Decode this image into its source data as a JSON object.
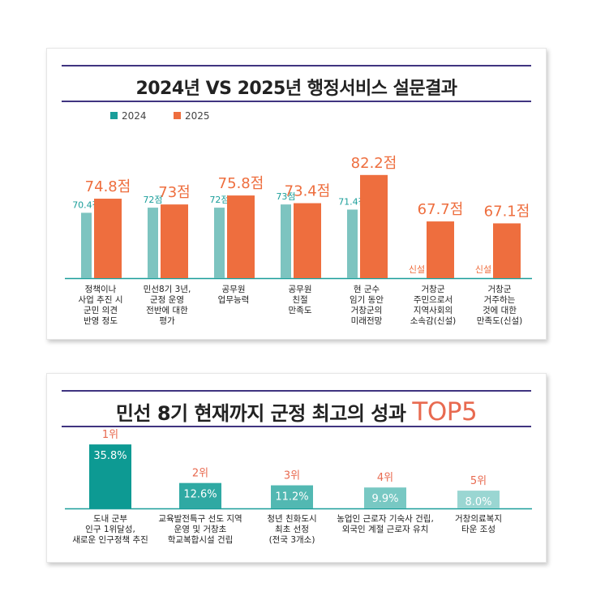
{
  "colors": {
    "teal_2024": "#7dc4c0",
    "orange_2025": "#ee6e3e",
    "teal_label": "#1a9e9a",
    "navy_rule": "#3f3480",
    "axis": "#1a9e9a",
    "top_bars": [
      "#0d9a93",
      "#2fa9a3",
      "#52b8b2",
      "#78c8c3",
      "#9ad6d2"
    ],
    "rank_red": "#e86a50"
  },
  "chart1": {
    "title": "2024년 VS 2025년 행정서비스 설문결과",
    "legend": [
      {
        "label": "2024",
        "color": "#1a9e9a"
      },
      {
        "label": "2025",
        "color": "#ee6e3e"
      }
    ]
  },
  "chart2": {
    "title": "민선 8기 현재까지 군정 최고의 성과",
    "title_accent": "TOP5"
  },
  "chart_data": [
    {
      "type": "bar",
      "title": "2024년 VS 2025년 행정서비스 설문결과",
      "categories": [
        [
          "정책이나",
          "사업 추진 시",
          "군민 의견",
          "반영 정도"
        ],
        [
          "민선8기 3년,",
          "군정 운영",
          "전반에 대한",
          "평가"
        ],
        [
          "공무원",
          "업무능력"
        ],
        [
          "공무원",
          "친절",
          "만족도"
        ],
        [
          "현 군수",
          "임기 동안",
          "거창군의",
          "미래전망"
        ],
        [
          "거창군",
          "주민으로서",
          "지역사회의",
          "소속감(신설)"
        ],
        [
          "거창군",
          "거주하는",
          "것에 대한",
          "만족도(신설)"
        ]
      ],
      "series": [
        {
          "name": "2024",
          "values": [
            70.4,
            72,
            72,
            73,
            71.4,
            null,
            null
          ],
          "labels": [
            "70.4점",
            "72점",
            "72점",
            "73점",
            "71.4점",
            "신설",
            "신설"
          ]
        },
        {
          "name": "2025",
          "values": [
            74.8,
            73,
            75.8,
            73.4,
            82.2,
            67.7,
            67.1
          ],
          "labels": [
            "74.8점",
            "73점",
            "75.8점",
            "73.4점",
            "82.2점",
            "67.7점",
            "67.1점"
          ]
        }
      ],
      "legend_position": "top-left",
      "grid": false
    },
    {
      "type": "bar",
      "title": "민선 8기 현재까지 군정 최고의 성과 TOP5",
      "categories": [
        [
          "도내 군부",
          "인구 1위달성,",
          "새로운 인구정책 추진"
        ],
        [
          "교육발전특구 선도 지역",
          "운영 및 거창초",
          "학교복합시설 건립"
        ],
        [
          "청년 친화도시",
          "최초 선정",
          "(전국 3개소)"
        ],
        [
          "농업인 근로자 기숙사 건립,",
          "외국인 계절 근로자 유치"
        ],
        [
          "거창의료복지",
          "타운 조성"
        ]
      ],
      "ranks": [
        "1위",
        "2위",
        "3위",
        "4위",
        "5위"
      ],
      "values": [
        35.8,
        12.6,
        11.2,
        9.9,
        8.0
      ],
      "value_labels": [
        "35.8%",
        "12.6%",
        "11.2%",
        "9.9%",
        "8.0%"
      ],
      "grid": false
    }
  ]
}
